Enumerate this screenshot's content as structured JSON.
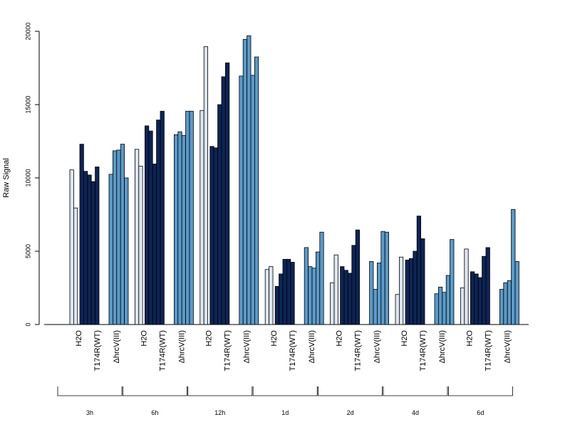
{
  "chart_data": {
    "type": "bar",
    "ylabel": "Raw Signal",
    "ylim": [
      0,
      20000
    ],
    "yticks": [
      0,
      5000,
      10000,
      15000,
      20000
    ],
    "grid": false,
    "condition_labels": [
      "H2O",
      "T174R(WT)",
      "ΔhrcV(III)"
    ],
    "series": [
      {
        "name": "H2O",
        "color": "#dce6f0"
      },
      {
        "name": "T174R(WT)",
        "color": "#0d2455"
      },
      {
        "name": "ΔhrcV(III)",
        "color": "#5b9ac8"
      }
    ],
    "groups": [
      {
        "label": "3h",
        "values": [
          [
            10550,
            7950
          ],
          [
            12300,
            10450,
            10200,
            9750,
            10750
          ],
          [
            10250,
            11850,
            11900,
            12300,
            10000
          ]
        ]
      },
      {
        "label": "6h",
        "values": [
          [
            11950,
            10800
          ],
          [
            13550,
            13200,
            10950,
            13950,
            14550
          ],
          [
            12950,
            13150,
            12900,
            14550,
            14550
          ]
        ]
      },
      {
        "label": "12h",
        "values": [
          [
            14600,
            18950
          ],
          [
            12150,
            12050,
            15000,
            16900,
            17850
          ],
          [
            16950,
            19450,
            19700,
            17000,
            18250
          ]
        ]
      },
      {
        "label": "1d",
        "values": [
          [
            3750,
            3950
          ],
          [
            2600,
            3450,
            4450,
            4450,
            4250
          ],
          [
            5250,
            3950,
            3850,
            4950,
            6300
          ]
        ]
      },
      {
        "label": "2d",
        "values": [
          [
            2850,
            4750
          ],
          [
            3950,
            3700,
            3500,
            5400,
            6450
          ],
          [
            4300,
            2400,
            4200,
            6350,
            6300
          ]
        ]
      },
      {
        "label": "4d",
        "values": [
          [
            2050,
            4600
          ],
          [
            4400,
            4500,
            5000,
            7400,
            5850
          ],
          [
            2100,
            2550,
            2200,
            3350,
            5800
          ]
        ]
      },
      {
        "label": "6d",
        "values": [
          [
            2500,
            5150
          ],
          [
            3600,
            3450,
            3200,
            4650,
            5250
          ],
          [
            2400,
            2850,
            3000,
            7850,
            4300
          ]
        ]
      }
    ]
  }
}
